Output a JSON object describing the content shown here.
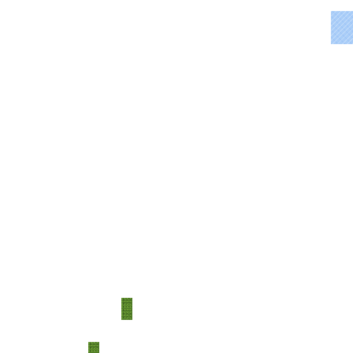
{
  "scene": {
    "background_color": "#ffffff",
    "tiles": [
      {
        "kind": "water",
        "color": "#a9cdf8"
      },
      {
        "kind": "grass",
        "color": "#4f7a28"
      },
      {
        "kind": "grass",
        "color": "#4f7a28"
      }
    ]
  }
}
